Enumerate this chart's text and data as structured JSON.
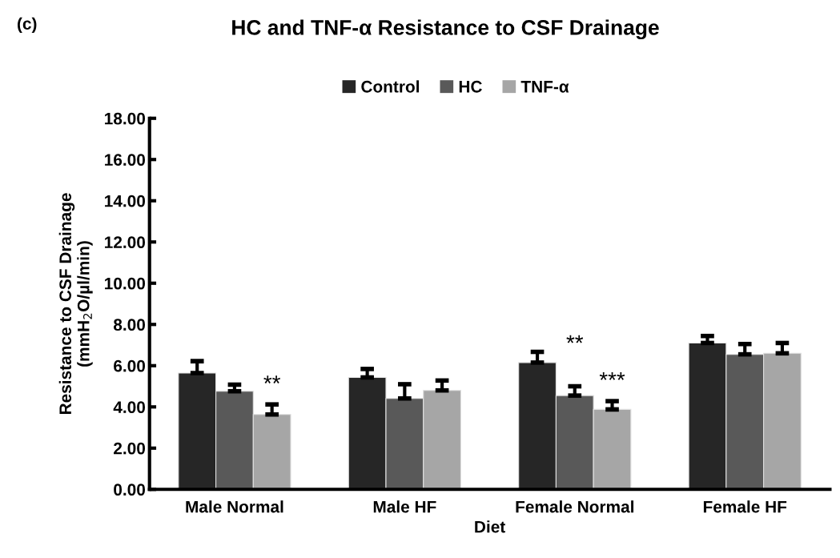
{
  "chart_data": {
    "type": "bar",
    "title": "HC and TNF-α Resistance to CSF Drainage",
    "xlabel": "Diet",
    "ylabel": "Resistance to CSF Drainage\n(mmH$_{2}$O/µl/min)",
    "categories": [
      "Male Normal",
      "Male HF",
      "Female Normal",
      "Female HF"
    ],
    "series": [
      {
        "name": "Control",
        "color": "#262626",
        "values": [
          5.64,
          5.43,
          6.15,
          7.1
        ],
        "errors": [
          [
            5.64,
            6.22
          ],
          [
            5.43,
            5.84
          ],
          [
            6.15,
            6.67
          ],
          [
            7.1,
            7.44
          ]
        ]
      },
      {
        "name": "HC",
        "color": "#595959",
        "values": [
          4.76,
          4.41,
          4.55,
          6.55
        ],
        "errors": [
          [
            4.76,
            5.08
          ],
          [
            4.41,
            5.1
          ],
          [
            4.55,
            5.0
          ],
          [
            6.55,
            7.05
          ]
        ]
      },
      {
        "name": "TNF-α",
        "color": "#a6a6a6",
        "values": [
          3.63,
          4.8,
          3.88,
          6.6
        ],
        "errors": [
          [
            3.63,
            4.12
          ],
          [
            4.8,
            5.28
          ],
          [
            3.88,
            4.28
          ],
          [
            6.6,
            7.1
          ]
        ]
      }
    ],
    "ylim": [
      0,
      18
    ],
    "yticks": [
      {
        "value": 0,
        "label": "0.00"
      },
      {
        "value": 2,
        "label": "2.00"
      },
      {
        "value": 4,
        "label": "4.00"
      },
      {
        "value": 6,
        "label": "6.00"
      },
      {
        "value": 8,
        "label": "8.00"
      },
      {
        "value": 10,
        "label": "10.00"
      },
      {
        "value": 12,
        "label": "12.00"
      },
      {
        "value": 14,
        "label": "14.00"
      },
      {
        "value": 16,
        "label": "16.00"
      },
      {
        "value": 18,
        "label": "18.00"
      }
    ],
    "annotations": [
      "(c)",
      "**",
      "**",
      "***"
    ],
    "grid": false,
    "legend": "top"
  }
}
